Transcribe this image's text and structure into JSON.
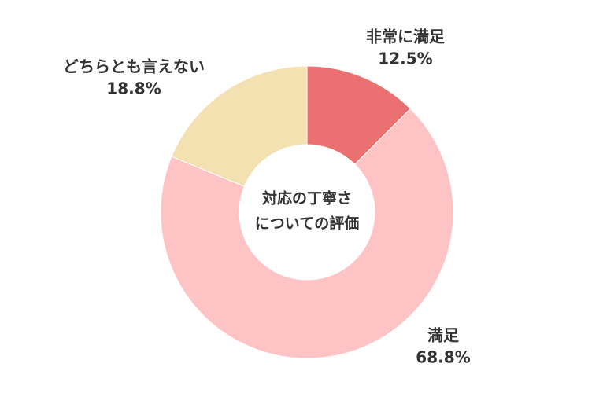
{
  "chart_data": {
    "type": "donut",
    "center_text": [
      "対応の丁寧さ",
      "についての評価"
    ],
    "categories": [
      "非常に満足",
      "満足",
      "どちらとも言えない"
    ],
    "values": [
      12.5,
      68.8,
      18.8
    ],
    "value_labels": [
      "12.5%",
      "68.8%",
      "18.8%"
    ],
    "colors": [
      "#eb7072",
      "#fdc3c5",
      "#f3e1b2"
    ]
  }
}
